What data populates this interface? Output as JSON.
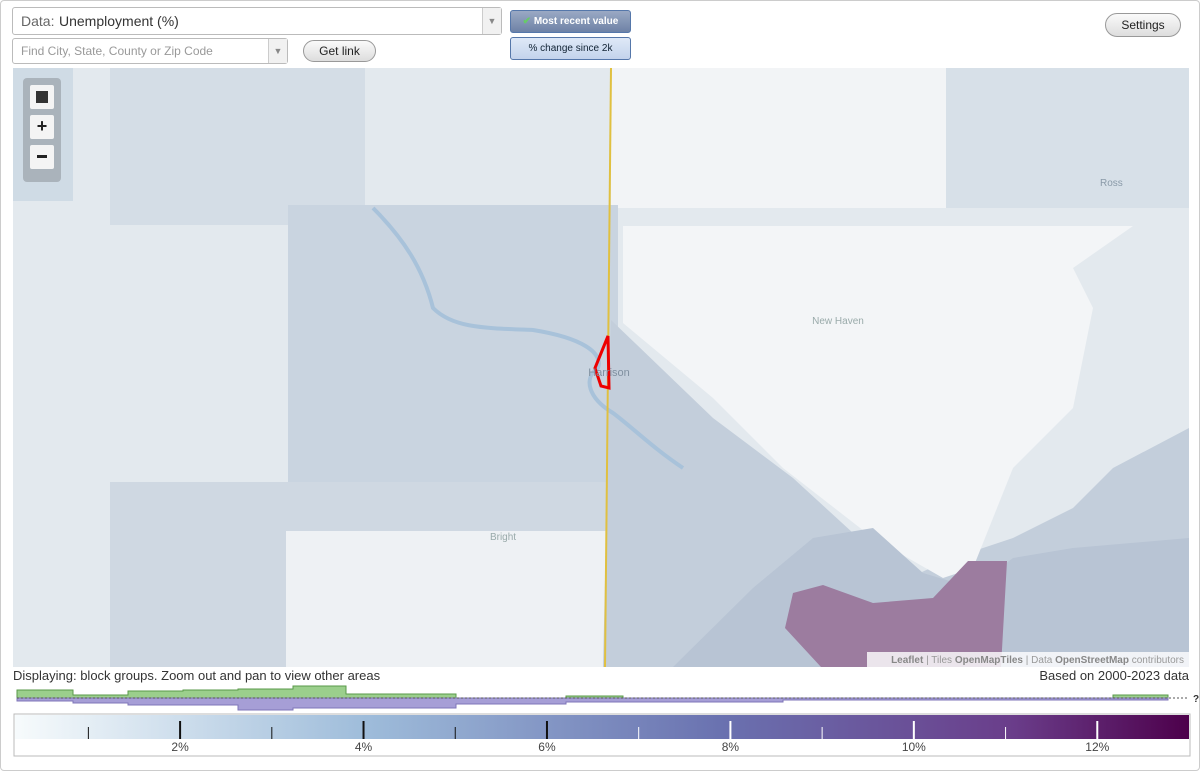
{
  "toolbar": {
    "data_label": "Data:",
    "data_value": "Unemployment (%)",
    "search_placeholder": "Find City, State, County or Zip Code",
    "get_link": "Get link",
    "most_recent": "Most recent value",
    "percent_change": "% change since 2k",
    "settings": "Settings"
  },
  "map": {
    "places": [
      "Ross",
      "New Haven",
      "Harrison",
      "Bright"
    ],
    "attribution": {
      "leaflet": "Leaflet",
      "tiles_label": "Tiles",
      "tiles": "OpenMapTiles",
      "data_label": "Data",
      "data": "OpenStreetMap",
      "contributors": "contributors"
    }
  },
  "status": {
    "displaying": "Displaying: block groups. Zoom out and pan to view other areas",
    "based_on": "Based on 2000-2023 data",
    "help": "?"
  },
  "legend": {
    "range": [
      0.2,
      13
    ],
    "ticks": [
      {
        "value": 2,
        "label": "2%"
      },
      {
        "value": 4,
        "label": "4%"
      },
      {
        "value": 6,
        "label": "6%"
      },
      {
        "value": 8,
        "label": "8%"
      },
      {
        "value": 10,
        "label": "10%"
      },
      {
        "value": 12,
        "label": "12%"
      }
    ],
    "minor_ticks": [
      1,
      3,
      5,
      7,
      9,
      11
    ]
  }
}
